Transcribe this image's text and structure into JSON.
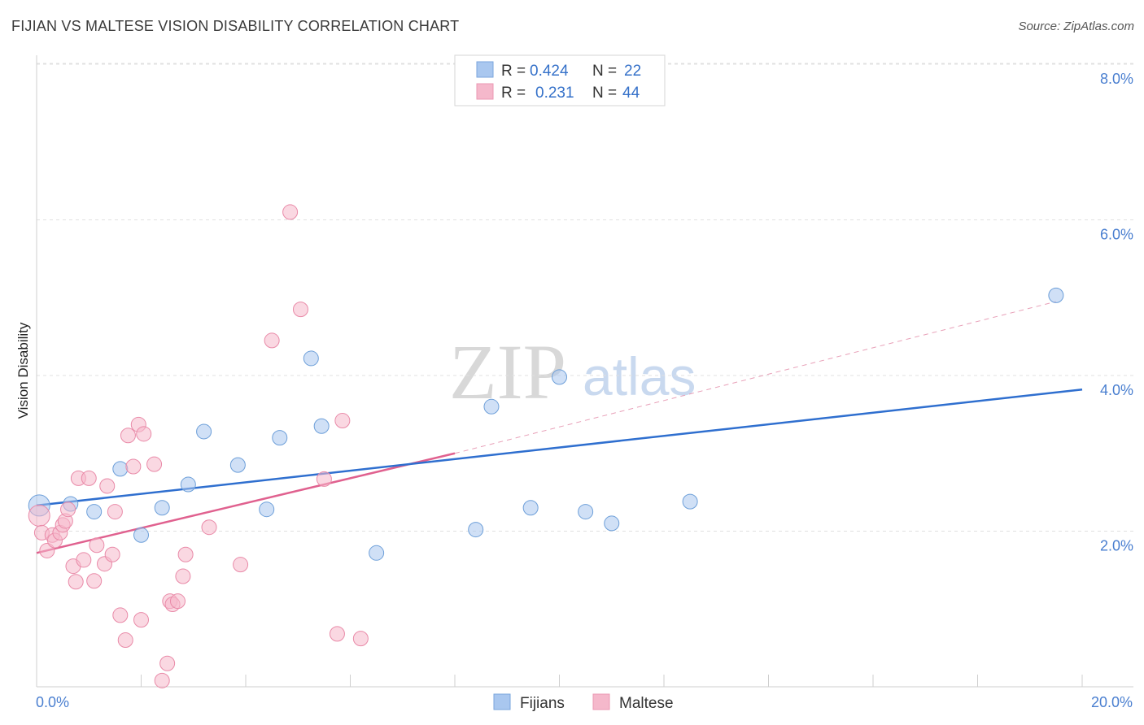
{
  "header": {
    "title": "FIJIAN VS MALTESE VISION DISABILITY CORRELATION CHART",
    "source": "Source: ZipAtlas.com"
  },
  "watermark": {
    "zip": "ZIP",
    "atlas": "atlas"
  },
  "legend_top": {
    "rows": [
      {
        "r_label": "R = ",
        "r_value": "0.424",
        "n_label": "N = ",
        "n_value": "22",
        "color": "#a9c7ef"
      },
      {
        "r_label": "R = ",
        "r_value": "0.231",
        "n_label": "N = ",
        "n_value": "44",
        "color": "#f5b8cb"
      }
    ]
  },
  "legend_bottom": {
    "items": [
      {
        "label": "Fijians",
        "color": "#a9c7ef"
      },
      {
        "label": "Maltese",
        "color": "#f5b8cb"
      }
    ]
  },
  "chart_data": {
    "type": "scatter",
    "title": "FIJIAN VS MALTESE VISION DISABILITY CORRELATION CHART",
    "ylabel": "Vision Disability",
    "xlim": [
      0,
      20
    ],
    "ylim": [
      0,
      8.3
    ],
    "x_tick_labels": [
      {
        "value": 0,
        "label": "0.0%"
      },
      {
        "value": 20,
        "label": "20.0%"
      }
    ],
    "y_tick_labels": [
      {
        "value": 2,
        "label": "2.0%"
      },
      {
        "value": 4,
        "label": "4.0%"
      },
      {
        "value": 6,
        "label": "6.0%"
      },
      {
        "value": 8,
        "label": "8.0%"
      }
    ],
    "x_minor_ticks": [
      2,
      4,
      6,
      8,
      10,
      12,
      14,
      16,
      18,
      20
    ],
    "y_grid": [
      2,
      4,
      6,
      8
    ],
    "grid": true,
    "legend_position": "top-center",
    "series": [
      {
        "name": "Fijians",
        "color": "#a9c7ef",
        "stroke": "#6d9fd9",
        "trend": {
          "x0": 0,
          "y0": 2.33,
          "x1": 20,
          "y1": 3.82,
          "color": "#2f6fcf"
        },
        "points": [
          [
            0.05,
            2.33,
            13
          ],
          [
            0.65,
            2.35,
            9
          ],
          [
            1.1,
            2.25,
            9
          ],
          [
            1.6,
            2.8,
            9
          ],
          [
            2.0,
            1.95,
            9
          ],
          [
            2.4,
            2.3,
            9
          ],
          [
            2.9,
            2.6,
            9
          ],
          [
            3.2,
            3.28,
            9
          ],
          [
            3.85,
            2.85,
            9
          ],
          [
            4.4,
            2.28,
            9
          ],
          [
            4.65,
            3.2,
            9
          ],
          [
            5.25,
            4.22,
            9
          ],
          [
            5.45,
            3.35,
            9
          ],
          [
            6.5,
            1.72,
            9
          ],
          [
            8.4,
            2.02,
            9
          ],
          [
            8.7,
            3.6,
            9
          ],
          [
            9.45,
            2.3,
            9
          ],
          [
            10.0,
            3.98,
            9
          ],
          [
            10.5,
            2.25,
            9
          ],
          [
            11.0,
            2.1,
            9
          ],
          [
            12.5,
            2.38,
            9
          ],
          [
            19.5,
            5.03,
            9
          ]
        ]
      },
      {
        "name": "Maltese",
        "color": "#f5b8cb",
        "stroke": "#e98aa8",
        "trend": {
          "x0": 0,
          "y0": 1.72,
          "x1": 8.0,
          "y1": 3.0,
          "color": "#e0618f",
          "dash_x1": 19.5,
          "dash_y1": 4.95
        },
        "points": [
          [
            0.05,
            2.2,
            13
          ],
          [
            0.1,
            1.98,
            9
          ],
          [
            0.2,
            1.75,
            9
          ],
          [
            0.3,
            1.95,
            9
          ],
          [
            0.35,
            1.88,
            9
          ],
          [
            0.45,
            1.98,
            9
          ],
          [
            0.5,
            2.08,
            9
          ],
          [
            0.55,
            2.13,
            9
          ],
          [
            0.6,
            2.28,
            9
          ],
          [
            0.7,
            1.55,
            9
          ],
          [
            0.75,
            1.35,
            9
          ],
          [
            0.8,
            2.68,
            9
          ],
          [
            0.9,
            1.63,
            9
          ],
          [
            1.0,
            2.68,
            9
          ],
          [
            1.1,
            1.36,
            9
          ],
          [
            1.15,
            1.82,
            9
          ],
          [
            1.3,
            1.58,
            9
          ],
          [
            1.35,
            2.58,
            9
          ],
          [
            1.45,
            1.7,
            9
          ],
          [
            1.5,
            2.25,
            9
          ],
          [
            1.6,
            0.92,
            9
          ],
          [
            1.7,
            0.6,
            9
          ],
          [
            1.75,
            3.23,
            9
          ],
          [
            1.85,
            2.83,
            9
          ],
          [
            1.95,
            3.37,
            9
          ],
          [
            2.0,
            0.86,
            9
          ],
          [
            2.05,
            3.25,
            9
          ],
          [
            2.25,
            2.86,
            9
          ],
          [
            2.4,
            0.08,
            9
          ],
          [
            2.5,
            0.3,
            9
          ],
          [
            2.55,
            1.1,
            9
          ],
          [
            2.6,
            1.06,
            9
          ],
          [
            2.7,
            1.1,
            9
          ],
          [
            2.8,
            1.42,
            9
          ],
          [
            2.85,
            1.7,
            9
          ],
          [
            3.3,
            2.05,
            9
          ],
          [
            3.9,
            1.57,
            9
          ],
          [
            4.5,
            4.45,
            9
          ],
          [
            4.85,
            6.1,
            9
          ],
          [
            5.05,
            4.85,
            9
          ],
          [
            5.5,
            2.67,
            9
          ],
          [
            5.75,
            0.68,
            9
          ],
          [
            5.85,
            3.42,
            9
          ],
          [
            6.2,
            0.62,
            9
          ]
        ]
      }
    ]
  }
}
